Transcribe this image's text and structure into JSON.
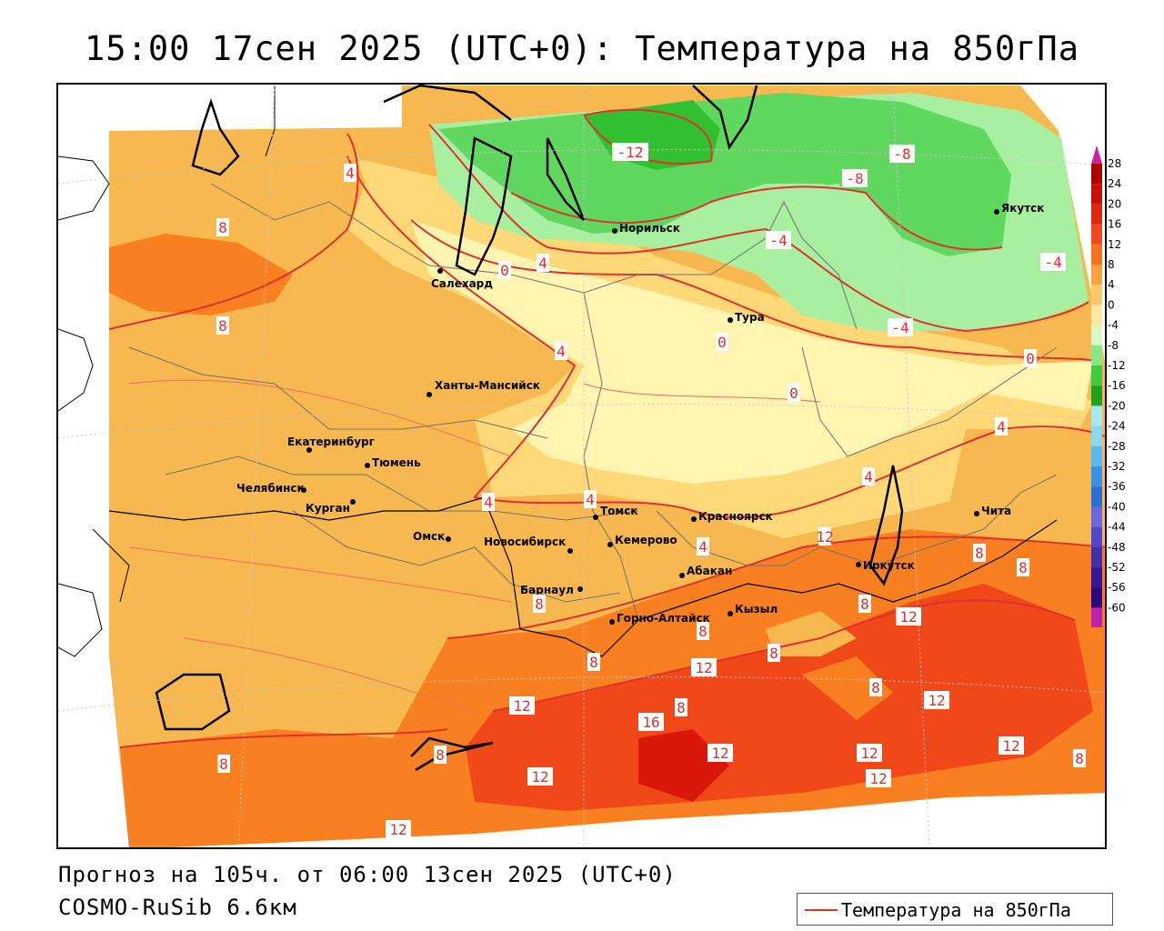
{
  "title": "15:00 17сен 2025 (UTC+0): Температура на 850гПа",
  "footer": {
    "forecast": "Прогноз на 105ч. от 06:00 13сен 2025 (UTC+0)",
    "model": "COSMO-RuSib 6.6км"
  },
  "legend": {
    "label": "Температура на 850гПа",
    "color": "#e03030"
  },
  "colors": {
    "t_m12": "#30c030",
    "t_m8": "#60d860",
    "t_m4": "#a8f0a0",
    "t_0": "#fff4b0",
    "t_4": "#ffd878",
    "t_8": "#f8b850",
    "t_12": "#f88020",
    "t_16": "#f04818",
    "t_20": "#d81808",
    "t_24": "#b80808",
    "isoline": "#e03030"
  },
  "colorbar": {
    "levels": [
      "28",
      "24",
      "20",
      "16",
      "12",
      "8",
      "4",
      "0",
      "-4",
      "-8",
      "-12",
      "-16",
      "-20",
      "-24",
      "-28",
      "-32",
      "-36",
      "-40",
      "-44",
      "-48",
      "-52",
      "-56",
      "-60"
    ],
    "colors": [
      "#b00000",
      "#c81008",
      "#e02810",
      "#f04818",
      "#f87020",
      "#fca040",
      "#fcc868",
      "#fce8a0",
      "#d8f8c8",
      "#88e888",
      "#40cc40",
      "#20a020",
      "#a8e8f0",
      "#88d8f0",
      "#58b8f0",
      "#3890e8",
      "#2870d8",
      "#6868e0",
      "#5048c8",
      "#4030b0",
      "#301898",
      "#280880",
      "#c020b0"
    ]
  },
  "cities": [
    {
      "name": "Норильск"
    },
    {
      "name": "Якутск"
    },
    {
      "name": "Салехард"
    },
    {
      "name": "Тура"
    },
    {
      "name": "Ханты-Мансийск"
    },
    {
      "name": "Екатеринбург"
    },
    {
      "name": "Тюмень"
    },
    {
      "name": "Челябинск"
    },
    {
      "name": "Курган"
    },
    {
      "name": "Омск"
    },
    {
      "name": "Новосибирск"
    },
    {
      "name": "Томск"
    },
    {
      "name": "Кемерово"
    },
    {
      "name": "Красноярск"
    },
    {
      "name": "Абакан"
    },
    {
      "name": "Барнаул"
    },
    {
      "name": "Горно-Алтайск"
    },
    {
      "name": "Кызыл"
    },
    {
      "name": "Иркутск"
    },
    {
      "name": "Чита"
    }
  ],
  "isolabels": [
    "-12",
    "-8",
    "-8",
    "-4",
    "-4",
    "-4",
    "0",
    "0",
    "0",
    "0",
    "4",
    "4",
    "4",
    "4",
    "4",
    "4",
    "4",
    "4",
    "8",
    "8",
    "8",
    "8",
    "8",
    "8",
    "8",
    "8",
    "8",
    "8",
    "8",
    "8",
    "12",
    "12",
    "12",
    "12",
    "12",
    "12",
    "12",
    "12",
    "12",
    "12",
    "12",
    "16"
  ]
}
